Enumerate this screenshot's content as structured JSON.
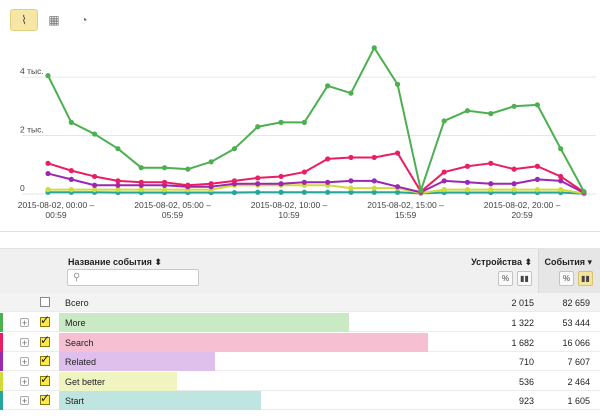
{
  "toolbar": {
    "buttons": [
      {
        "icon": "line-chart-icon",
        "glyph": "⌇",
        "active": true
      },
      {
        "icon": "table-icon",
        "glyph": "▦",
        "active": false
      },
      {
        "icon": "pie-chart-icon",
        "glyph": "◔",
        "active": false
      }
    ]
  },
  "chart_data": {
    "type": "line",
    "ylim": [
      0,
      5200
    ],
    "y_ticks": [
      {
        "label": "4 тыс.",
        "value": 4000
      },
      {
        "label": "2 тыс.",
        "value": 2000
      },
      {
        "label": "0",
        "value": 0
      }
    ],
    "x_tick_labels": [
      {
        "line1": "2015-08-02, 00:00 –",
        "line2": "00:59",
        "index": 0
      },
      {
        "line1": "2015-08-02, 05:00 –",
        "line2": "05:59",
        "index": 5
      },
      {
        "line1": "2015-08-02, 10:00 –",
        "line2": "10:59",
        "index": 10
      },
      {
        "line1": "2015-08-02, 15:00 –",
        "line2": "15:59",
        "index": 15
      },
      {
        "line1": "2015-08-02, 20:00 –",
        "line2": "20:59",
        "index": 20
      }
    ],
    "n_points": 24,
    "series": [
      {
        "color": "#4caf50",
        "values": [
          4050,
          2450,
          2050,
          1550,
          900,
          900,
          850,
          1100,
          1550,
          2300,
          2450,
          2450,
          3700,
          3450,
          5000,
          3750,
          120,
          2500,
          2850,
          2750,
          3000,
          3050,
          1550,
          80
        ]
      },
      {
        "color": "#e91e63",
        "values": [
          1050,
          800,
          600,
          450,
          400,
          400,
          300,
          350,
          450,
          550,
          600,
          750,
          1200,
          1250,
          1250,
          1400,
          80,
          750,
          950,
          1050,
          850,
          950,
          600,
          60
        ]
      },
      {
        "color": "#9c27b0",
        "values": [
          700,
          500,
          300,
          300,
          300,
          300,
          250,
          250,
          350,
          350,
          350,
          400,
          400,
          450,
          450,
          250,
          60,
          450,
          400,
          350,
          350,
          500,
          450,
          40
        ]
      },
      {
        "color": "#cddc39",
        "values": [
          150,
          150,
          150,
          150,
          150,
          150,
          150,
          150,
          300,
          300,
          300,
          300,
          300,
          200,
          200,
          200,
          30,
          150,
          150,
          150,
          150,
          150,
          150,
          20
        ]
      },
      {
        "color": "#26a69a",
        "values": [
          60,
          60,
          60,
          50,
          50,
          50,
          50,
          50,
          50,
          60,
          60,
          60,
          60,
          60,
          60,
          60,
          20,
          50,
          50,
          50,
          50,
          50,
          50,
          10
        ]
      }
    ]
  },
  "table": {
    "name_header": "Название события ⬍",
    "devices_header": "Устройства ⬍",
    "events_header": "События ▾",
    "percent_label": "%",
    "bars_label": "▮▮",
    "total": {
      "name": "Всего",
      "devices": "2 015",
      "events": "82 659"
    },
    "rows": [
      {
        "name": "More",
        "devices": "1 322",
        "events": "53 444",
        "color": "#4caf50",
        "bar_color": "#c9eac4",
        "share": 0.656
      },
      {
        "name": "Search",
        "devices": "1 682",
        "events": "16 066",
        "color": "#e91e63",
        "bar_color": "#f6bfd2",
        "share": 0.835
      },
      {
        "name": "Related",
        "devices": "710",
        "events": "7 607",
        "color": "#9c27b0",
        "bar_color": "#dfc0ec",
        "share": 0.352
      },
      {
        "name": "Get better",
        "devices": "536",
        "events": "2 464",
        "color": "#cddc39",
        "bar_color": "#eff4c0",
        "share": 0.266
      },
      {
        "name": "Start",
        "devices": "923",
        "events": "1 605",
        "color": "#26a69a",
        "bar_color": "#bfe5e0",
        "share": 0.458
      }
    ]
  }
}
